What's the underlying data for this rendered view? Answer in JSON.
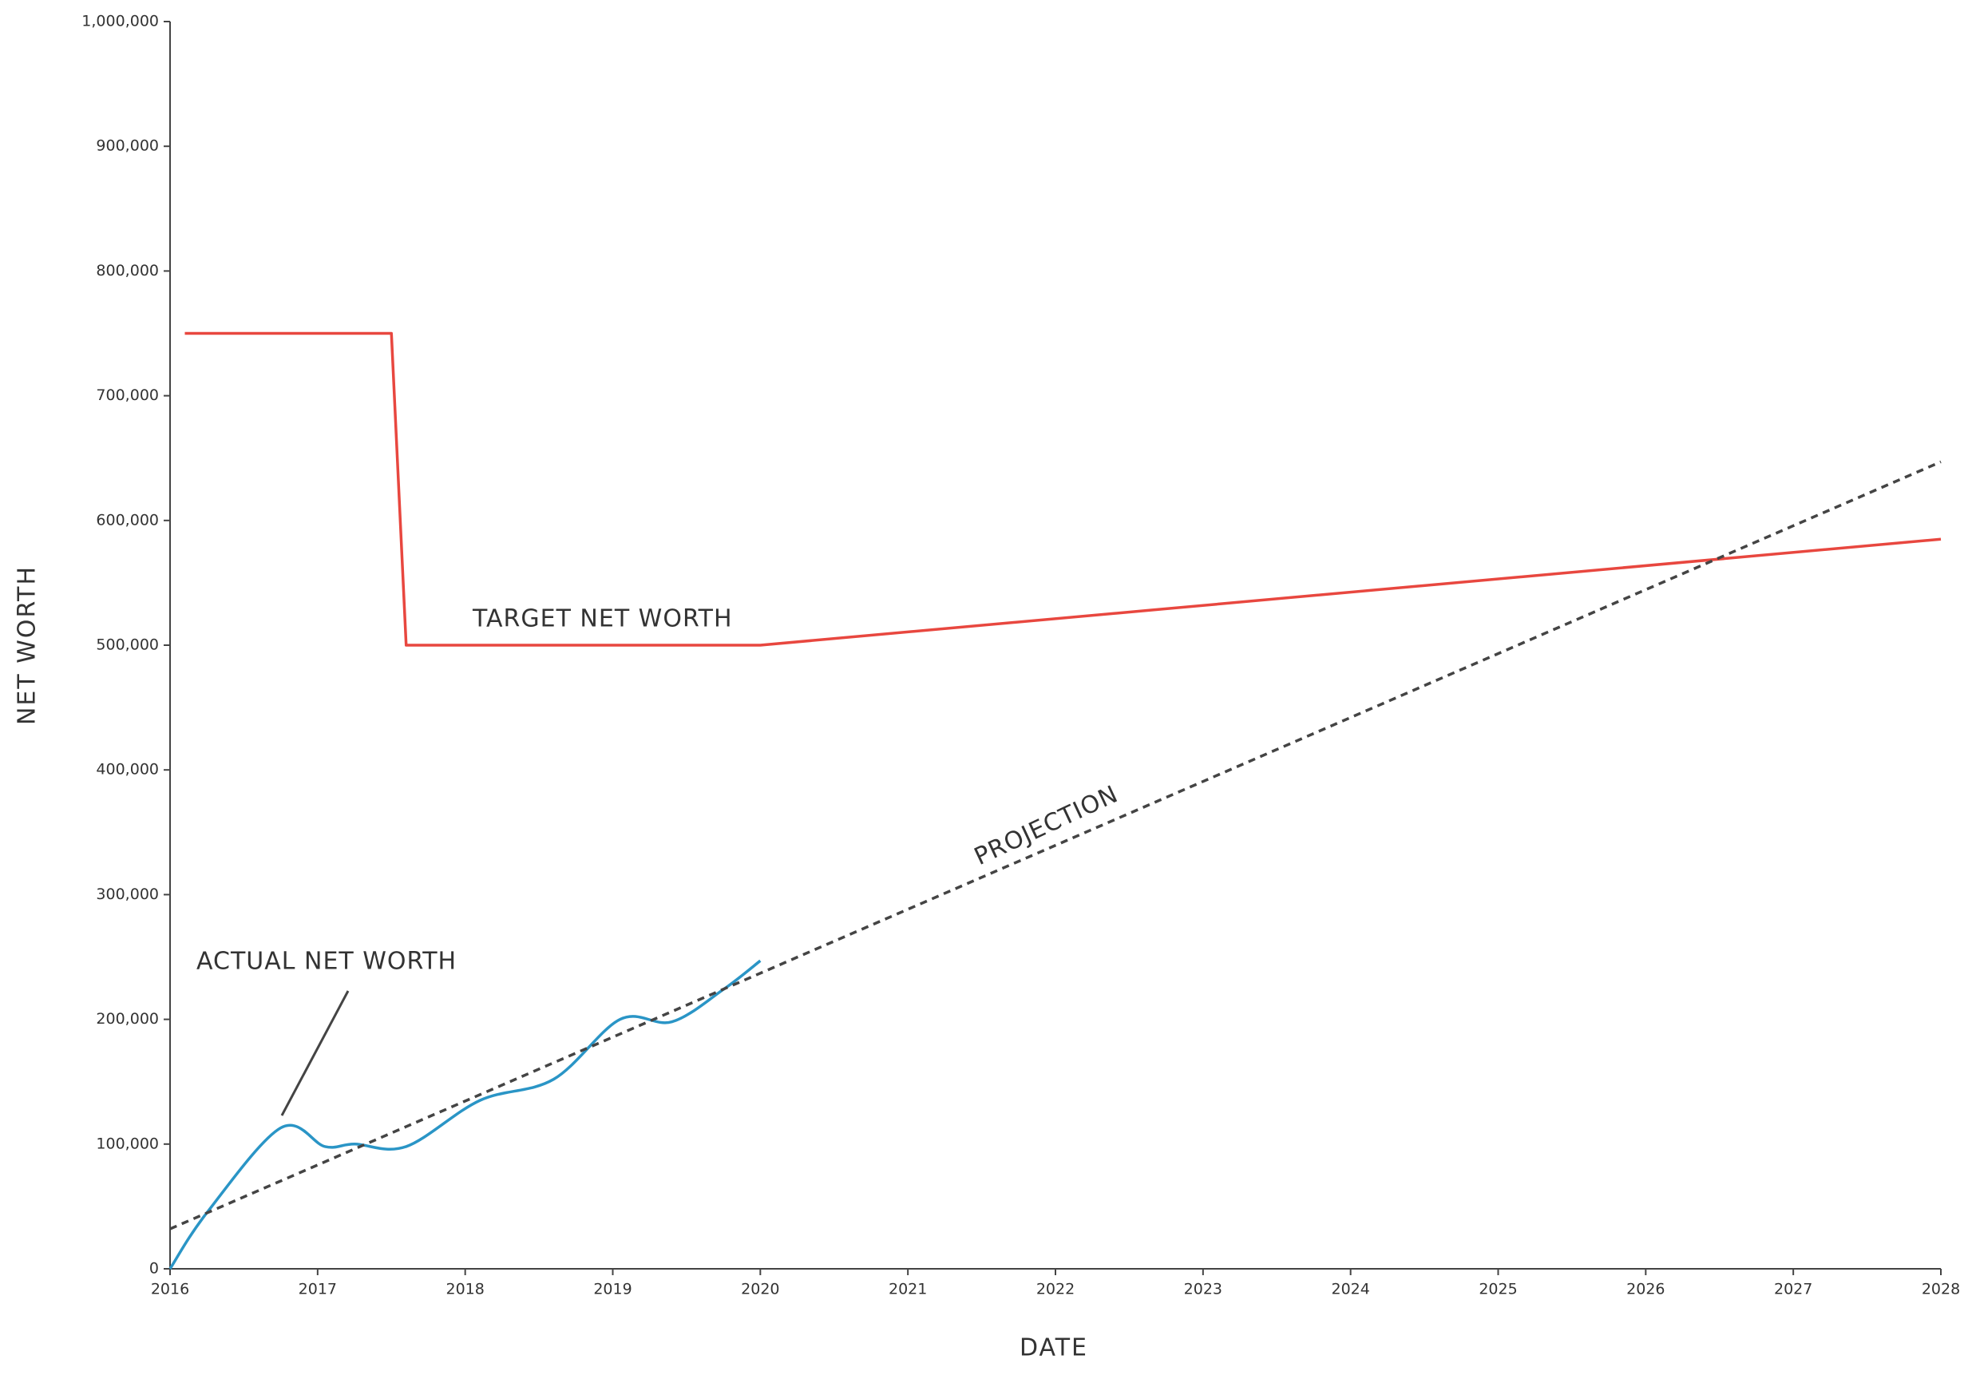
{
  "chart_data": {
    "type": "line",
    "y_label": "NET WORTH",
    "x_label": "DATE",
    "xlim": [
      2016,
      2028
    ],
    "xticks": [
      2016,
      2017,
      2018,
      2019,
      2020,
      2021,
      2022,
      2023,
      2024,
      2025,
      2026,
      2027,
      2028
    ],
    "ylim": [
      0,
      1000000
    ],
    "yticks": [
      0,
      {
        "value": 100000,
        "label": "100,000"
      },
      {
        "value": 200000,
        "label": "200,000"
      },
      {
        "value": 300000,
        "label": "300,000"
      },
      {
        "value": 400000,
        "label": "400,000"
      },
      {
        "value": 500000,
        "label": "500,000"
      },
      {
        "value": 600000,
        "label": "600,000"
      },
      {
        "value": 700000,
        "label": "700,000"
      },
      {
        "value": 800000,
        "label": "800,000"
      },
      {
        "value": 900000,
        "label": "900,000"
      },
      {
        "value": 1000000,
        "label": "1,000,000"
      }
    ],
    "series": [
      {
        "name": "TARGET NET WORTH",
        "color": "#e8473f",
        "style": "solid",
        "x": [
          2016.1,
          2017.5,
          2017.6,
          2020,
          2028
        ],
        "values": [
          750000,
          750000,
          500000,
          500000,
          585000
        ]
      },
      {
        "name": "ACTUAL NET WORTH",
        "color": "#2a95c6",
        "style": "smooth",
        "x": [
          2016,
          2016.25,
          2016.75,
          2017.05,
          2017.25,
          2017.6,
          2018.1,
          2018.6,
          2019.05,
          2019.4,
          2019.75,
          2020
        ],
        "values": [
          0,
          45000,
          113000,
          98000,
          100000,
          98000,
          135000,
          152000,
          200000,
          198000,
          224000,
          247000
        ]
      },
      {
        "name": "PROJECTION",
        "color": "#444444",
        "style": "dashed",
        "x": [
          2016,
          2028
        ],
        "values": [
          32000,
          647000
        ]
      }
    ]
  }
}
